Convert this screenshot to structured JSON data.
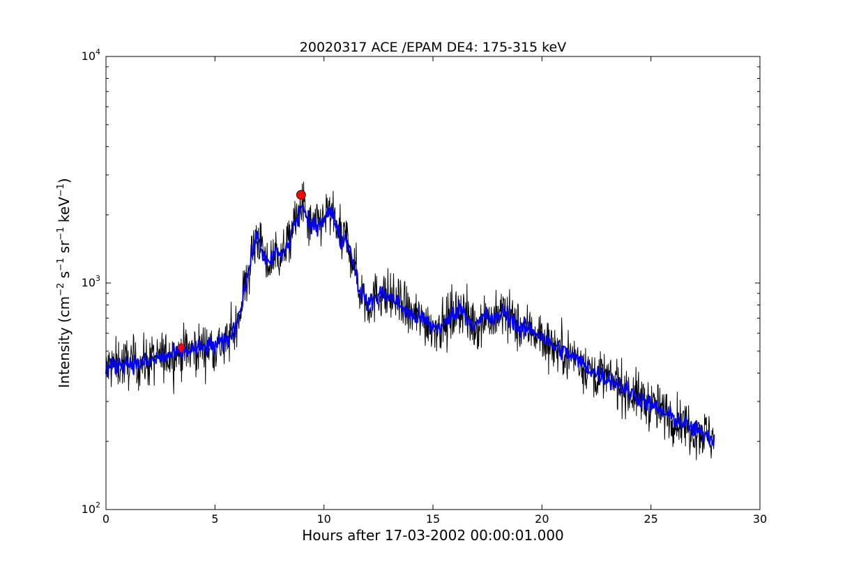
{
  "chart_data": {
    "type": "line",
    "title": "20020317 ACE /EPAM DE4: 175-315 keV",
    "xlabel": "Hours after 17-03-2002 00:00:01.000",
    "ylabel_parts": {
      "prefix": "Intensity (cm",
      "sup1": "−2",
      "mid1": " s",
      "sup2": "−1",
      "mid2": " sr",
      "sup3": "−1",
      "mid3": " keV",
      "sup4": "−1",
      "suffix": ")"
    },
    "xlim": [
      0,
      30
    ],
    "ylim": [
      100,
      10000
    ],
    "yscale": "log",
    "grid": false,
    "x_ticks": [
      0,
      5,
      10,
      15,
      20,
      25,
      30
    ],
    "x_tick_labels": [
      "0",
      "5",
      "10",
      "15",
      "20",
      "25",
      "30"
    ],
    "y_ticks": [
      100,
      1000,
      10000
    ],
    "y_tick_labels": [
      {
        "base": "10",
        "exp": "2"
      },
      {
        "base": "10",
        "exp": "3"
      },
      {
        "base": "10",
        "exp": "4"
      }
    ],
    "series": [
      {
        "color": "#000000",
        "style": "noisy-raw",
        "x": [
          0,
          0.3,
          0.6,
          1.0,
          1.5,
          2.0,
          2.5,
          3.0,
          3.5,
          4.0,
          4.5,
          5.0,
          5.5,
          5.8,
          6.0,
          6.2,
          6.4,
          6.6,
          6.8,
          7.0,
          7.2,
          7.4,
          7.6,
          7.8,
          8.0,
          8.2,
          8.4,
          8.6,
          8.8,
          9.0,
          9.2,
          9.4,
          9.6,
          9.8,
          10.0,
          10.2,
          10.4,
          10.6,
          10.8,
          11.0,
          11.2,
          11.4,
          11.6,
          11.8,
          12.0,
          12.3,
          12.6,
          12.9,
          13.2,
          13.6,
          14.0,
          14.5,
          15.0,
          15.5,
          16.0,
          16.3,
          16.6,
          17.0,
          17.4,
          17.8,
          18.2,
          18.6,
          19.0,
          19.5,
          20.0,
          20.5,
          21.0,
          21.5,
          22.0,
          22.5,
          23.0,
          23.5,
          24.0,
          24.5,
          25.0,
          25.5,
          26.0,
          26.5,
          27.0,
          27.5,
          27.9
        ],
        "y": [
          420,
          430,
          440,
          445,
          440,
          450,
          470,
          480,
          500,
          510,
          520,
          530,
          550,
          600,
          680,
          800,
          1000,
          1200,
          1500,
          1600,
          1350,
          1200,
          1250,
          1400,
          1300,
          1400,
          1500,
          1800,
          1900,
          2300,
          1900,
          1750,
          1800,
          1850,
          1950,
          2050,
          2000,
          1800,
          1500,
          1600,
          1400,
          1200,
          950,
          900,
          800,
          850,
          900,
          880,
          850,
          780,
          720,
          700,
          640,
          650,
          750,
          780,
          700,
          650,
          720,
          680,
          750,
          700,
          620,
          630,
          580,
          530,
          500,
          470,
          430,
          400,
          380,
          360,
          330,
          310,
          290,
          270,
          255,
          240,
          225,
          215,
          205
        ]
      },
      {
        "color": "#0000ff",
        "style": "smoothed",
        "x": [
          0,
          0.3,
          0.6,
          1.0,
          1.5,
          2.0,
          2.5,
          3.0,
          3.5,
          4.0,
          4.5,
          5.0,
          5.5,
          5.8,
          6.0,
          6.2,
          6.4,
          6.6,
          6.8,
          7.0,
          7.2,
          7.4,
          7.6,
          7.8,
          8.0,
          8.2,
          8.4,
          8.6,
          8.8,
          9.0,
          9.2,
          9.4,
          9.6,
          9.8,
          10.0,
          10.2,
          10.4,
          10.6,
          10.8,
          11.0,
          11.2,
          11.4,
          11.6,
          11.8,
          12.0,
          12.3,
          12.6,
          12.9,
          13.2,
          13.6,
          14.0,
          14.5,
          15.0,
          15.5,
          16.0,
          16.3,
          16.6,
          17.0,
          17.4,
          17.8,
          18.2,
          18.6,
          19.0,
          19.5,
          20.0,
          20.5,
          21.0,
          21.5,
          22.0,
          22.5,
          23.0,
          23.5,
          24.0,
          24.5,
          25.0,
          25.5,
          26.0,
          26.5,
          27.0,
          27.5,
          27.9
        ],
        "y": [
          420,
          430,
          440,
          445,
          440,
          450,
          470,
          480,
          500,
          510,
          520,
          530,
          550,
          600,
          680,
          800,
          1000,
          1200,
          1500,
          1600,
          1350,
          1200,
          1250,
          1400,
          1300,
          1400,
          1500,
          1800,
          1900,
          2300,
          1900,
          1750,
          1800,
          1850,
          1950,
          2050,
          2000,
          1800,
          1500,
          1600,
          1400,
          1200,
          950,
          900,
          800,
          850,
          900,
          880,
          850,
          780,
          720,
          700,
          640,
          650,
          750,
          780,
          700,
          650,
          720,
          680,
          750,
          700,
          620,
          630,
          580,
          530,
          500,
          470,
          430,
          400,
          380,
          360,
          330,
          310,
          290,
          270,
          255,
          240,
          225,
          215,
          205
        ]
      }
    ],
    "markers": [
      {
        "x": 3.45,
        "y": 520,
        "shape": "diamond",
        "color": "#ff0000"
      },
      {
        "x": 8.95,
        "y": 2450,
        "shape": "circle",
        "color": "#ff0000"
      }
    ]
  }
}
